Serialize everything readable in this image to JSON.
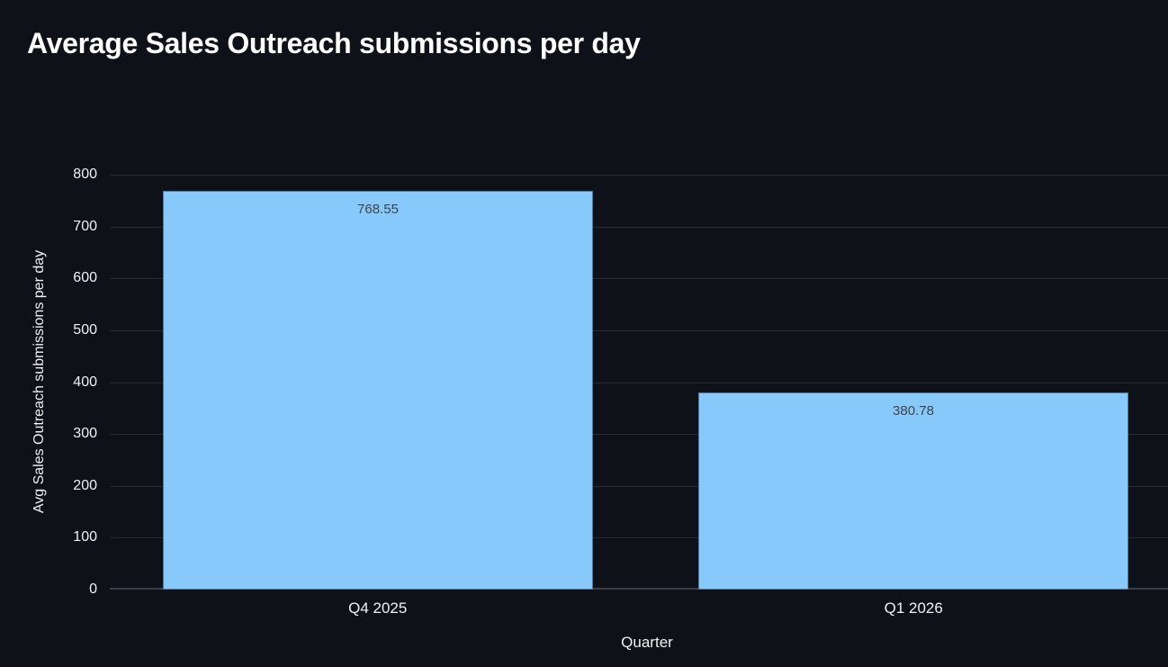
{
  "chart_data": {
    "type": "bar",
    "title": "Average Sales Outreach submissions per day",
    "categories": [
      "Q4 2025",
      "Q1 2026"
    ],
    "values": [
      768.55,
      380.78
    ],
    "value_labels": [
      "768.55",
      "380.78"
    ],
    "xlabel": "Quarter",
    "ylabel": "Avg Sales Outreach submissions per day",
    "ylim": [
      0,
      800
    ],
    "yticks": [
      0,
      100,
      200,
      300,
      400,
      500,
      600,
      700,
      800
    ],
    "grid": true,
    "legend": false,
    "colors": {
      "background": "#0e1117",
      "bar_fill": "#88c9fb",
      "gridline": "#272c34",
      "axis_line": "#3a3f48",
      "tick_text": "#f0f1f3",
      "title_text": "#ffffff",
      "value_label_text": "#3f434b"
    }
  }
}
